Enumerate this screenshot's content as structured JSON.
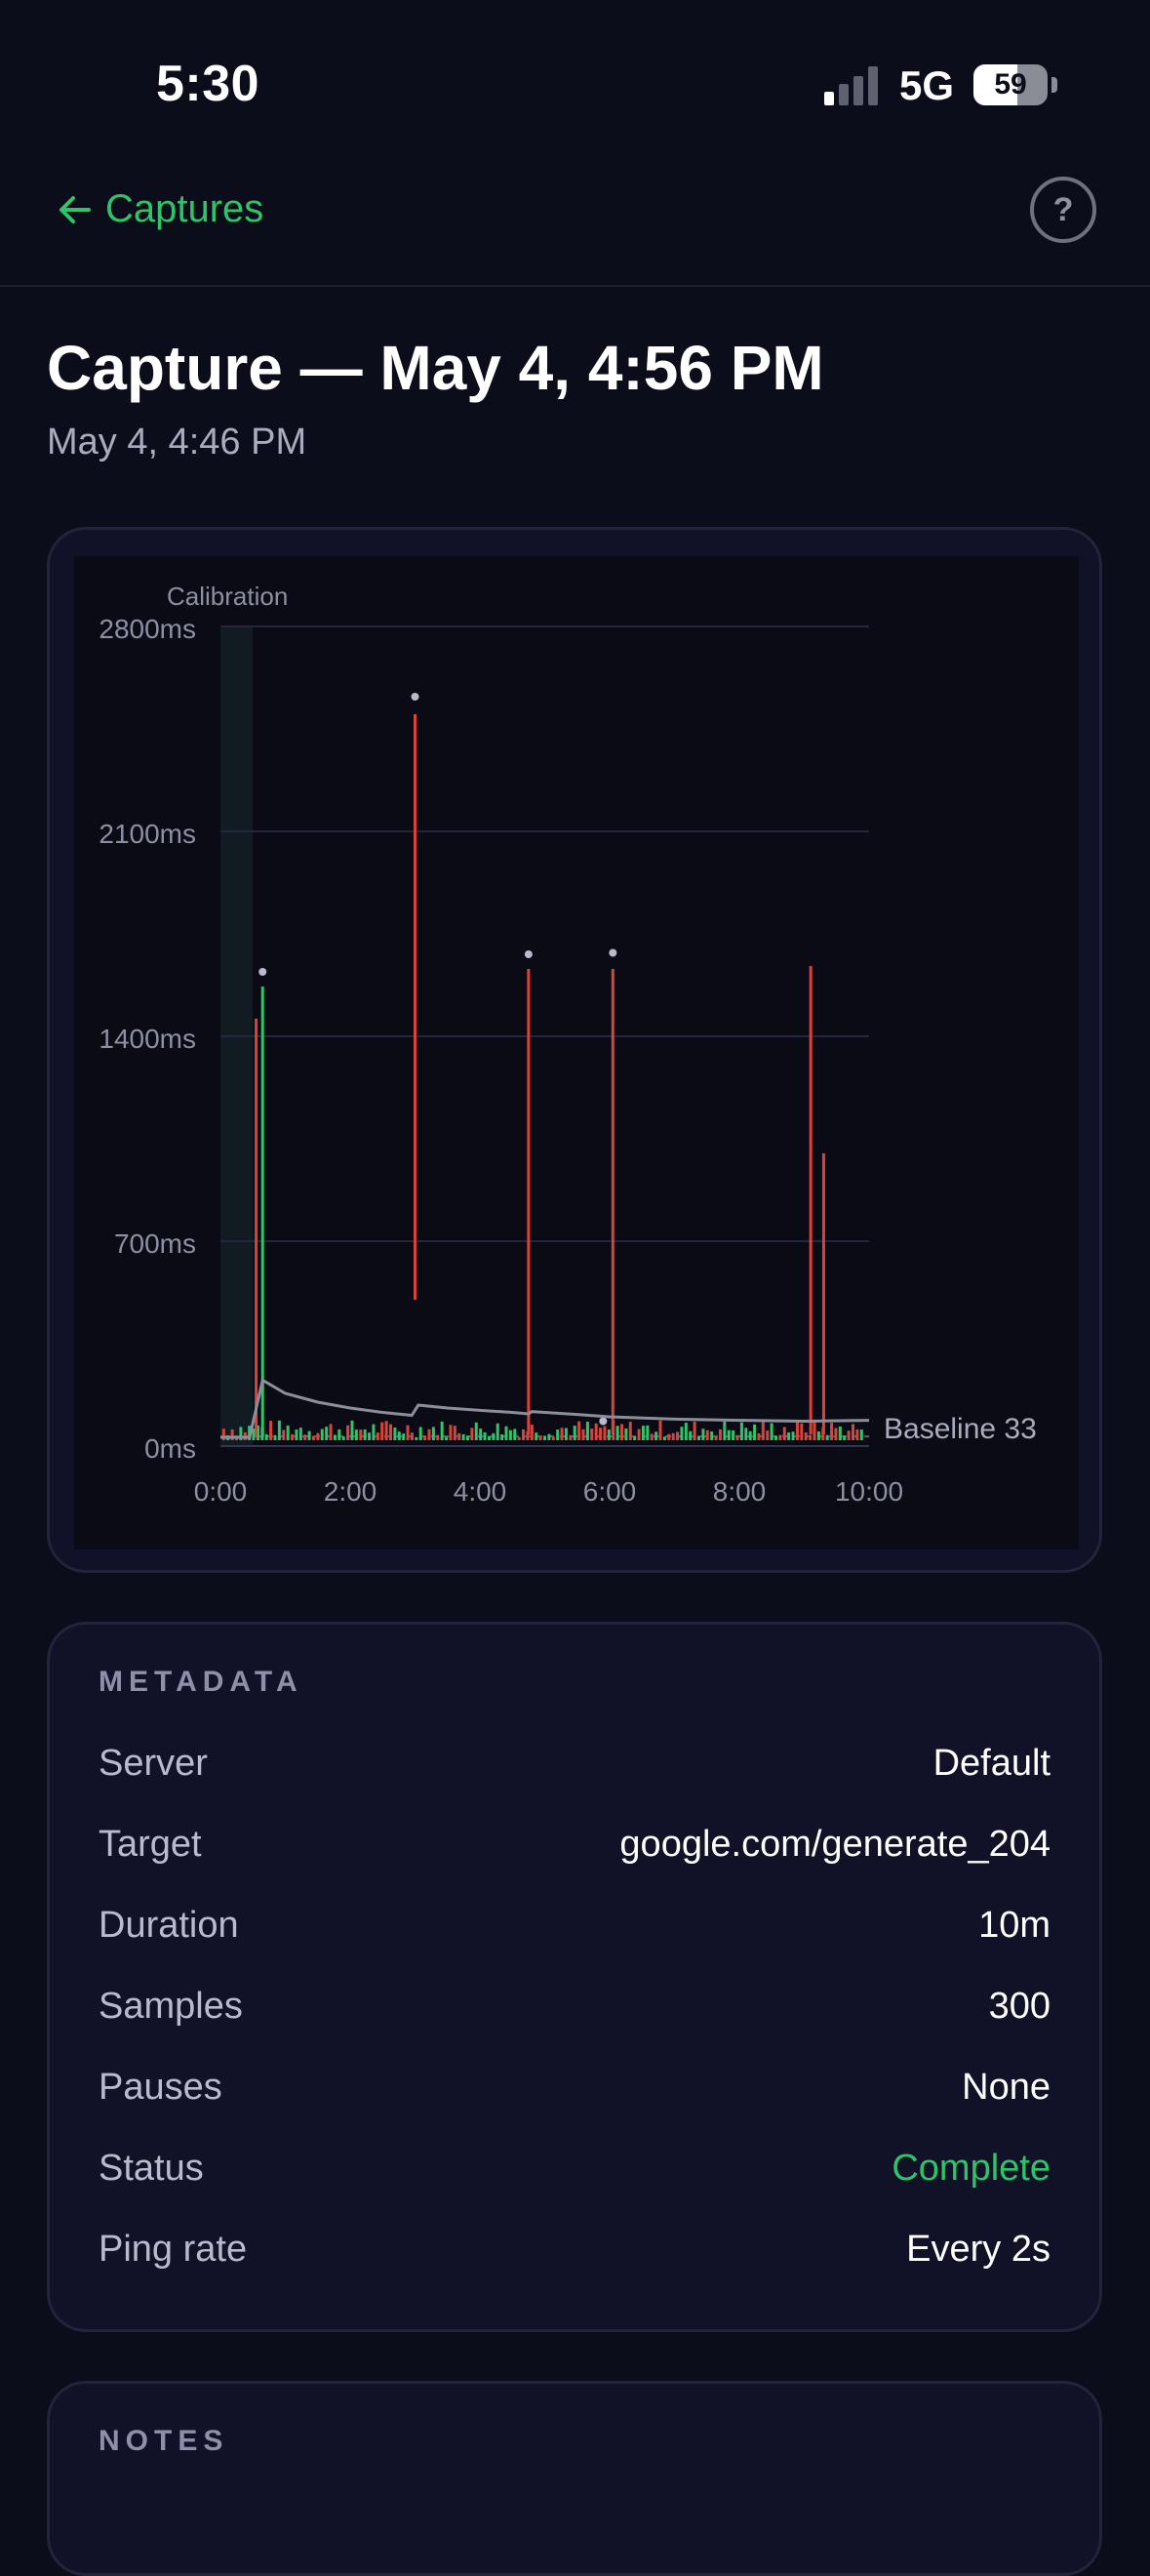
{
  "status_bar": {
    "time": "5:30",
    "network": "5G",
    "battery": "59",
    "battery_level": 0.59
  },
  "nav": {
    "back_label": "Captures",
    "help_label": "?"
  },
  "page": {
    "title": "Capture — May 4, 4:56 PM",
    "subtitle": "May 4, 4:46 PM"
  },
  "chart_data": {
    "type": "line",
    "annotations": [
      "Calibration",
      "Baseline 33"
    ],
    "x_ticks": [
      "0:00",
      "2:00",
      "4:00",
      "6:00",
      "8:00",
      "10:00"
    ],
    "y_ticks": [
      "0ms",
      "700ms",
      "1400ms",
      "2100ms",
      "2800ms"
    ],
    "xlim_minutes": [
      0,
      10
    ],
    "ylim_ms": [
      0,
      2800
    ],
    "grid": true,
    "calibration_window_minutes": [
      0,
      0.5
    ],
    "baseline_ms": 33,
    "spikes": [
      {
        "t": 0.55,
        "low": 30,
        "high": 1460,
        "color": "#d9443a"
      },
      {
        "t": 0.65,
        "low": 30,
        "high": 1570,
        "color": "#2fc46a",
        "dot": 1620
      },
      {
        "t": 3.0,
        "low": 500,
        "high": 2500,
        "color": "#d9443a",
        "dot": 2560
      },
      {
        "t": 4.75,
        "low": 40,
        "high": 1630,
        "color": "#d9443a",
        "dot": 1680
      },
      {
        "t": 6.05,
        "low": 40,
        "high": 1630,
        "color": "#d9443a",
        "dot": 1685
      },
      {
        "t": 9.1,
        "low": 40,
        "high": 1640,
        "color": "#d9443a"
      },
      {
        "t": 9.3,
        "low": 40,
        "high": 1000,
        "color": "#d9443a"
      }
    ],
    "extra_dots": [
      {
        "t": 5.9,
        "v": 85
      }
    ],
    "rolling_line": [
      [
        0,
        30
      ],
      [
        0.45,
        30
      ],
      [
        0.65,
        225
      ],
      [
        1.0,
        180
      ],
      [
        1.5,
        150
      ],
      [
        2.0,
        130
      ],
      [
        2.5,
        115
      ],
      [
        2.95,
        105
      ],
      [
        3.05,
        140
      ],
      [
        3.5,
        130
      ],
      [
        4.0,
        122
      ],
      [
        4.5,
        115
      ],
      [
        4.75,
        110
      ],
      [
        4.8,
        118
      ],
      [
        5.5,
        108
      ],
      [
        6.0,
        100
      ],
      [
        7.0,
        92
      ],
      [
        8.0,
        88
      ],
      [
        9.0,
        85
      ],
      [
        10.0,
        88
      ]
    ]
  },
  "metadata": {
    "heading": "METADATA",
    "rows": [
      {
        "key": "Server",
        "value": "Default"
      },
      {
        "key": "Target",
        "value": "google.com/generate_204"
      },
      {
        "key": "Duration",
        "value": "10m"
      },
      {
        "key": "Samples",
        "value": "300"
      },
      {
        "key": "Pauses",
        "value": "None"
      },
      {
        "key": "Status",
        "value": "Complete"
      },
      {
        "key": "Ping rate",
        "value": "Every 2s"
      }
    ]
  },
  "notes": {
    "heading": "NOTES"
  },
  "colors": {
    "accent_green": "#2fc46a",
    "spike_red": "#d9443a",
    "background": "#0c0d1a",
    "card": "#111228"
  }
}
